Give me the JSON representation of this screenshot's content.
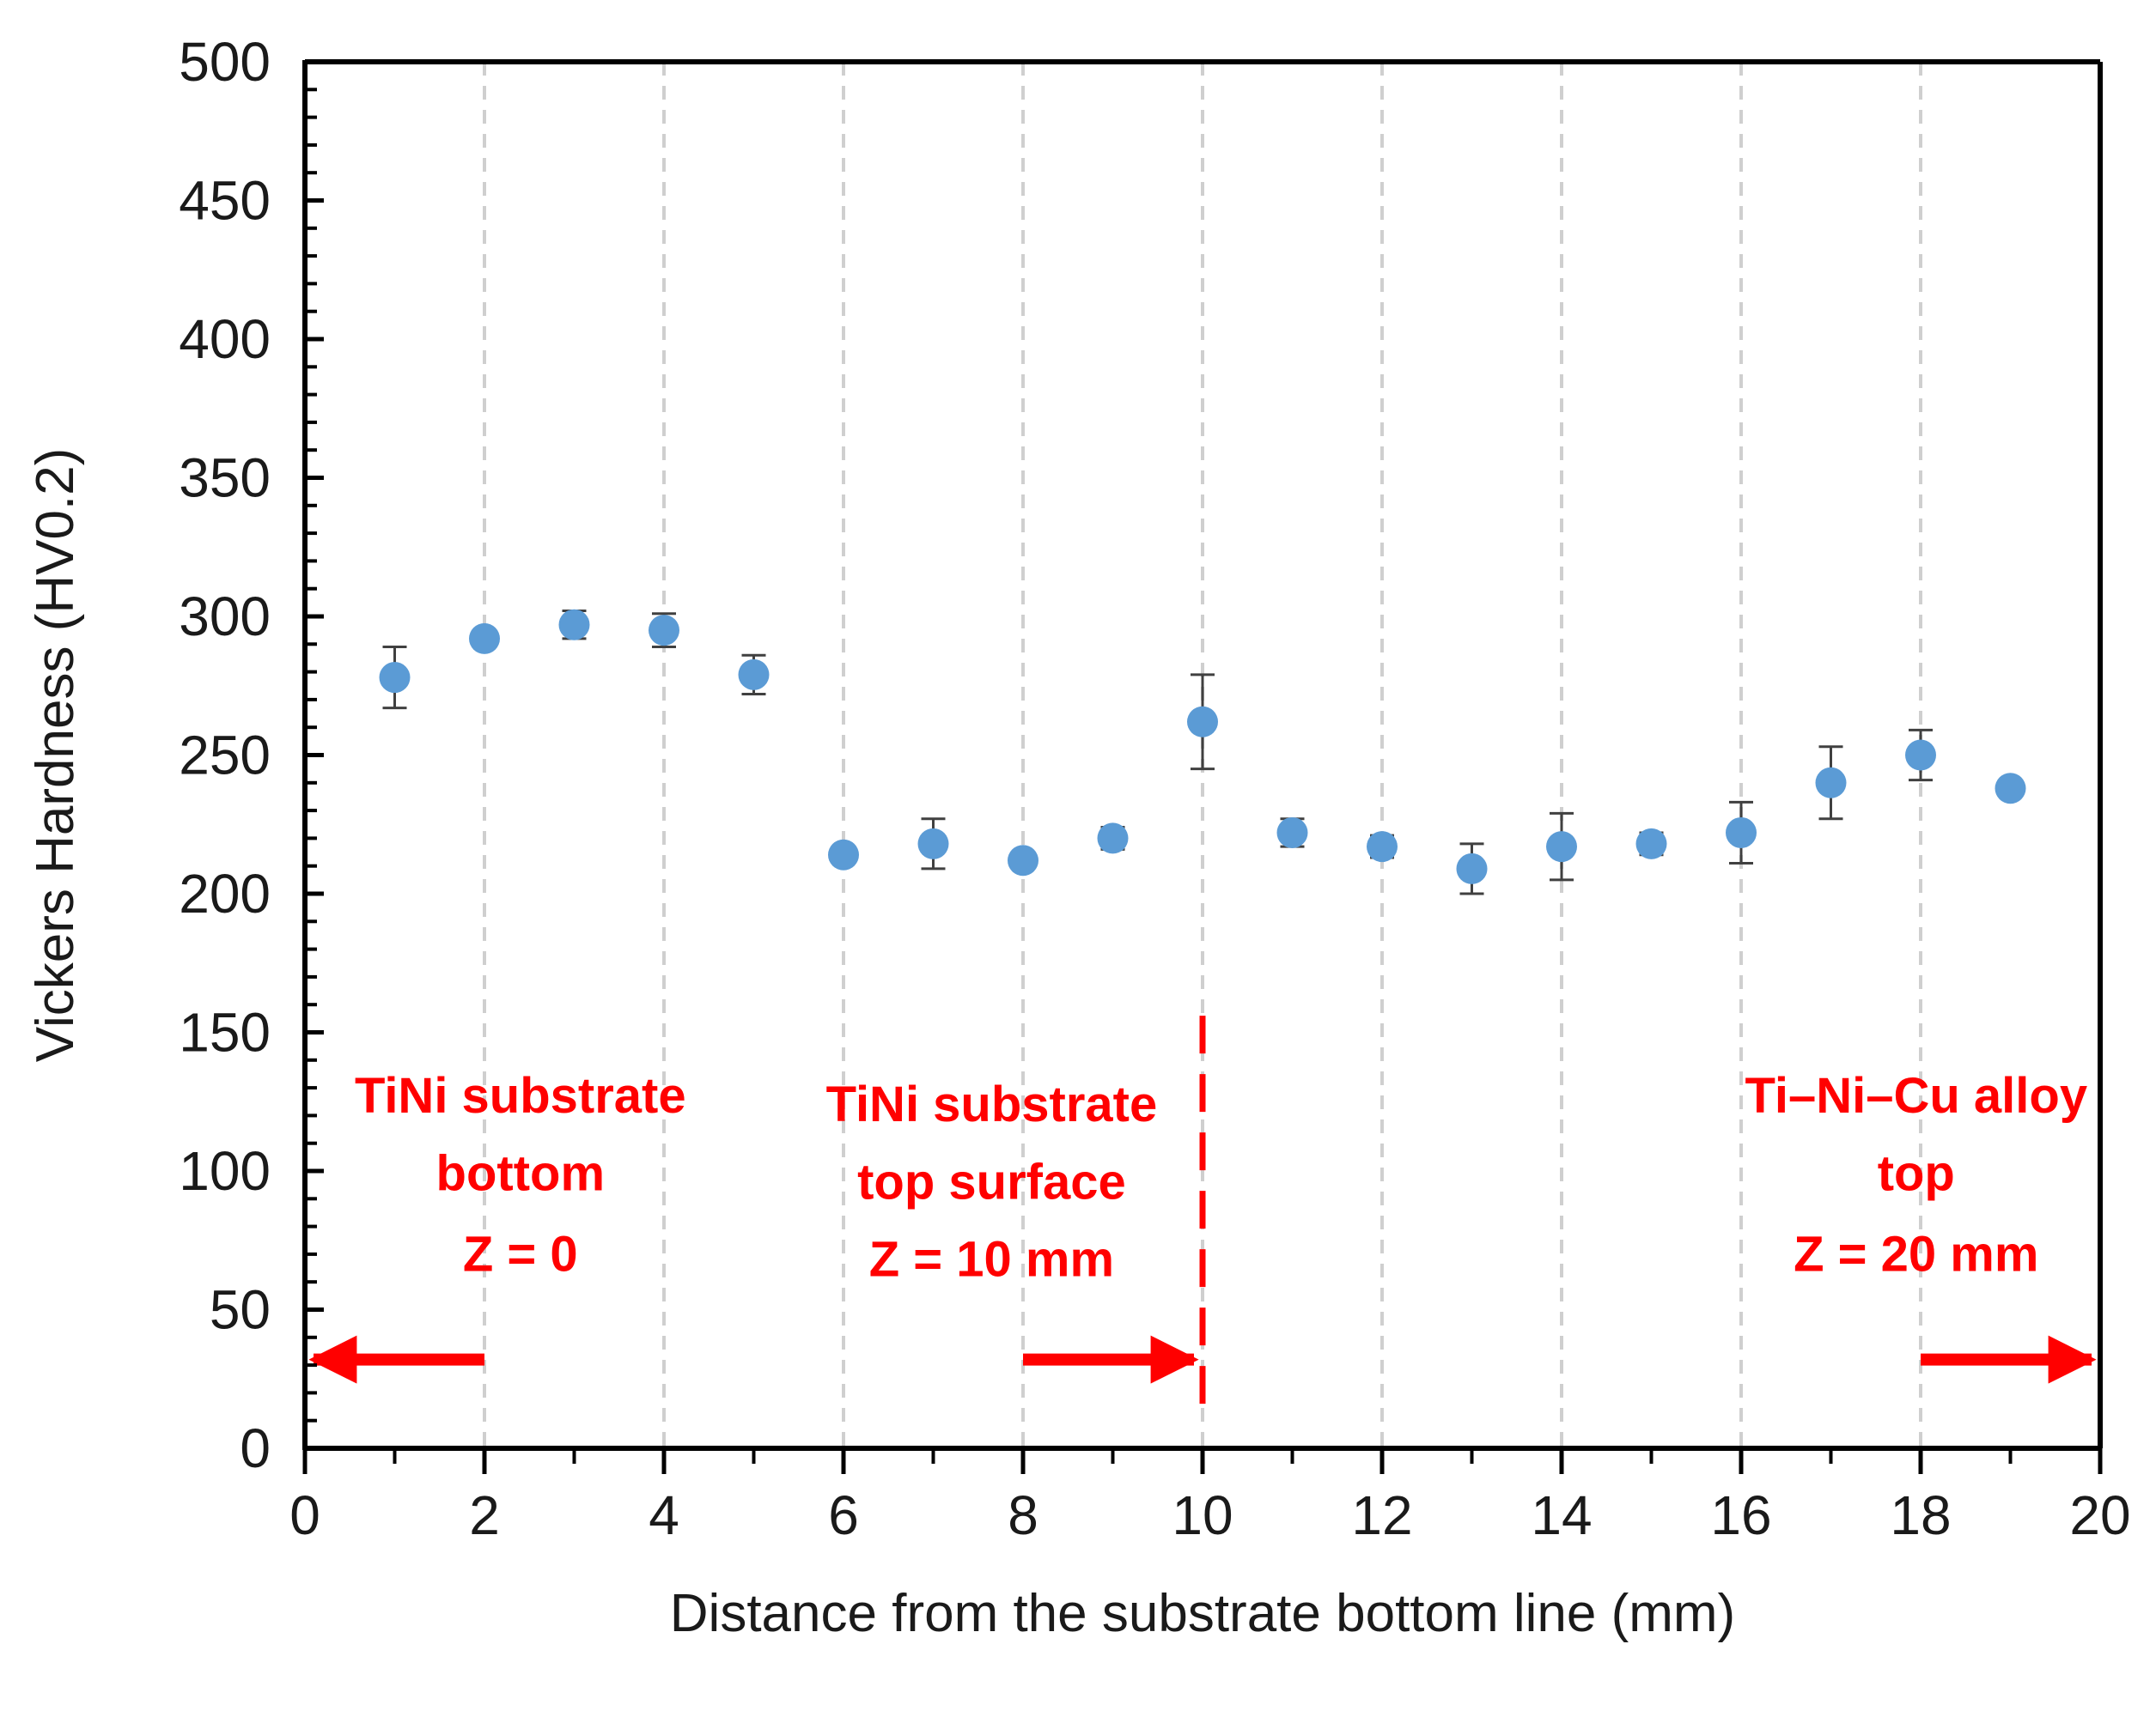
{
  "chart_data": {
    "type": "scatter",
    "xlabel": "Distance from the substrate bottom line (mm)",
    "ylabel": "Vickers Hardness (HV0.2)",
    "xlim": [
      0,
      20
    ],
    "ylim": [
      0,
      500
    ],
    "x_ticks": [
      0,
      2,
      4,
      6,
      8,
      10,
      12,
      14,
      16,
      18,
      20
    ],
    "y_ticks": [
      0,
      50,
      100,
      150,
      200,
      250,
      300,
      350,
      400,
      450,
      500
    ],
    "vertical_gridlines_at": [
      2,
      4,
      6,
      8,
      10,
      12,
      14,
      16,
      18
    ],
    "marker_color": "#5b9bd5",
    "annotation_color": "#ff0000",
    "series": [
      {
        "name": "Vickers hardness",
        "x": [
          1,
          2,
          3,
          4,
          5,
          6,
          7,
          8,
          9,
          10,
          11,
          12,
          13,
          14,
          15,
          16,
          17,
          18,
          19
        ],
        "y": [
          278,
          292,
          297,
          295,
          279,
          214,
          218,
          212,
          220,
          262,
          222,
          217,
          209,
          217,
          218,
          222,
          240,
          250,
          238
        ],
        "error": [
          11,
          3,
          5,
          6,
          7,
          3,
          9,
          3,
          4,
          17,
          5,
          4,
          9,
          12,
          4,
          11,
          13,
          9,
          3
        ]
      }
    ],
    "divider_x": 10,
    "annotations": [
      {
        "lines": [
          "TiNi substrate",
          "bottom",
          "Z = 0"
        ],
        "center_x": 2.4,
        "y_values": [
          121,
          93,
          64
        ],
        "arrow": {
          "from_x": 2,
          "to_x": 0,
          "y": 32
        }
      },
      {
        "lines": [
          "TiNi substrate",
          "top surface",
          "Z = 10 mm"
        ],
        "center_x": 7.65,
        "y_values": [
          118,
          90,
          62
        ],
        "arrow": {
          "from_x": 8,
          "to_x": 10,
          "y": 32
        }
      },
      {
        "lines": [
          "Ti–Ni–Cu alloy",
          "top",
          "Z = 20 mm"
        ],
        "center_x": 17.95,
        "y_values": [
          121,
          93,
          64
        ],
        "arrow": {
          "from_x": 18,
          "to_x": 20,
          "y": 32
        }
      }
    ]
  }
}
